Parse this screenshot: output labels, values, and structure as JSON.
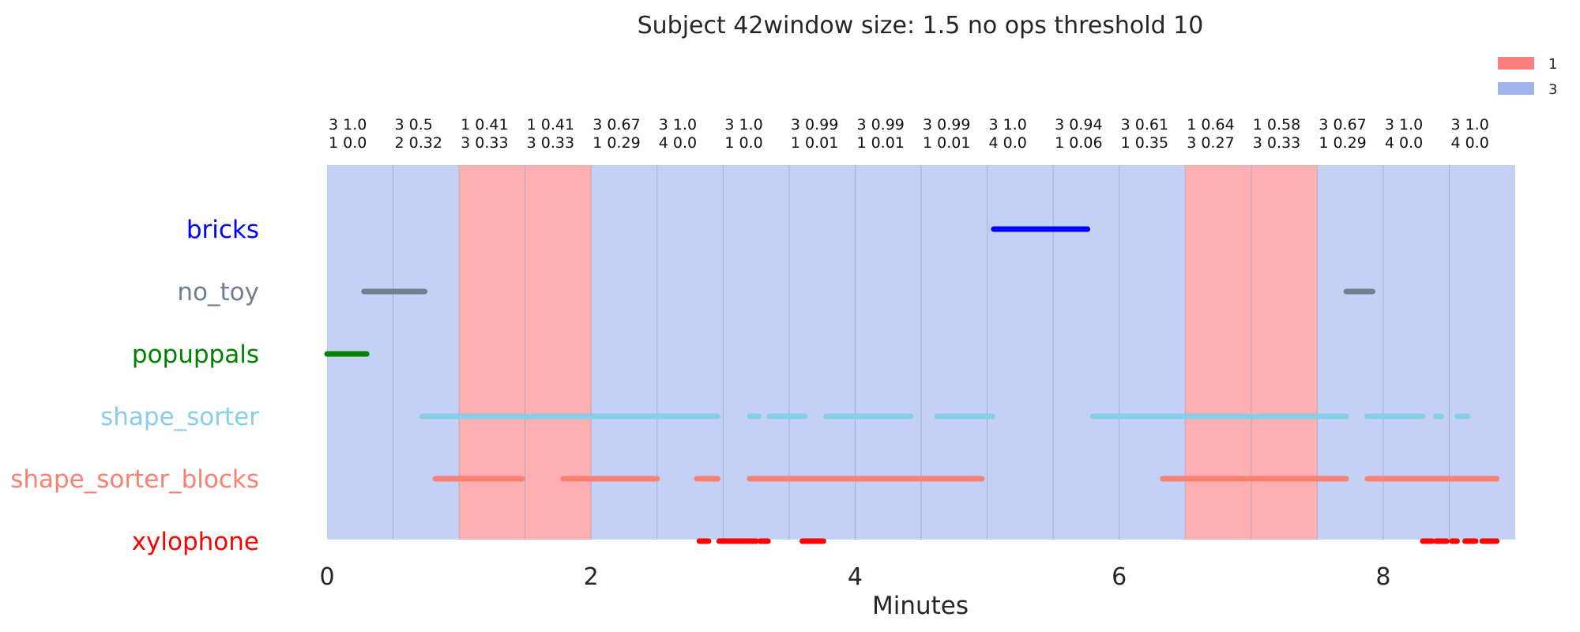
{
  "chart_data": {
    "type": "timeline",
    "title": "Subject 42window size: 1.5 no ops threshold 10",
    "xlabel": "Minutes",
    "xlim": [
      0,
      9
    ],
    "xticks": [
      0,
      2,
      4,
      6,
      8
    ],
    "window_minutes": 0.5,
    "legend": [
      {
        "label": "1",
        "color": "#fa8080"
      },
      {
        "label": "3",
        "color": "#a0b4ec"
      }
    ],
    "state_colors": {
      "1": "#fdb0b2",
      "3": "#c5d1f4"
    },
    "windows": [
      {
        "state": "3",
        "line1": "3 1.0",
        "line2": "1 0.0"
      },
      {
        "state": "3",
        "line1": "3 0.5",
        "line2": "2 0.32"
      },
      {
        "state": "1",
        "line1": "1 0.41",
        "line2": "3 0.33"
      },
      {
        "state": "1",
        "line1": "1 0.41",
        "line2": "3 0.33"
      },
      {
        "state": "3",
        "line1": "3 0.67",
        "line2": "1 0.29"
      },
      {
        "state": "3",
        "line1": "3 1.0",
        "line2": "4 0.0"
      },
      {
        "state": "3",
        "line1": "3 1.0",
        "line2": "1 0.0"
      },
      {
        "state": "3",
        "line1": "3 0.99",
        "line2": "1 0.01"
      },
      {
        "state": "3",
        "line1": "3 0.99",
        "line2": "1 0.01"
      },
      {
        "state": "3",
        "line1": "3 0.99",
        "line2": "1 0.01"
      },
      {
        "state": "3",
        "line1": "3 1.0",
        "line2": "4 0.0"
      },
      {
        "state": "3",
        "line1": "3 0.94",
        "line2": "1 0.06"
      },
      {
        "state": "3",
        "line1": "3 0.61",
        "line2": "1 0.35"
      },
      {
        "state": "1",
        "line1": "1 0.64",
        "line2": "3 0.27"
      },
      {
        "state": "1",
        "line1": "1 0.58",
        "line2": "3 0.33"
      },
      {
        "state": "3",
        "line1": "3 0.67",
        "line2": "1 0.29"
      },
      {
        "state": "3",
        "line1": "3 1.0",
        "line2": "4 0.0"
      },
      {
        "state": "3",
        "line1": "3 1.0",
        "line2": "4 0.0"
      }
    ],
    "toys": [
      {
        "name": "bricks",
        "color": "#0000ff",
        "segments": [
          [
            5.05,
            5.76
          ]
        ]
      },
      {
        "name": "no_toy",
        "color": "#708090",
        "segments": [
          [
            0.28,
            0.74
          ],
          [
            7.72,
            7.92
          ]
        ]
      },
      {
        "name": "popuppals",
        "color": "#008000",
        "segments": [
          [
            0.0,
            0.3
          ]
        ]
      },
      {
        "name": "shape_sorter",
        "color": "#87ceeb",
        "segments": [
          [
            0.72,
            2.96
          ],
          [
            3.2,
            3.27
          ],
          [
            3.35,
            3.62
          ],
          [
            3.78,
            4.42
          ],
          [
            4.62,
            5.04
          ],
          [
            5.8,
            7.72
          ],
          [
            7.88,
            8.3
          ],
          [
            8.4,
            8.44
          ],
          [
            8.56,
            8.64
          ]
        ]
      },
      {
        "name": "shape_sorter_blocks",
        "color": "#fa8072",
        "segments": [
          [
            0.82,
            1.48
          ],
          [
            1.79,
            2.5
          ],
          [
            2.8,
            2.96
          ],
          [
            3.2,
            4.96
          ],
          [
            6.33,
            7.72
          ],
          [
            7.88,
            8.86
          ]
        ]
      },
      {
        "name": "xylophone",
        "color": "#ff0000",
        "segments": [
          [
            2.82,
            2.89
          ],
          [
            2.97,
            3.25
          ],
          [
            3.28,
            3.34
          ],
          [
            3.6,
            3.76
          ],
          [
            8.3,
            8.37
          ],
          [
            8.4,
            8.48
          ],
          [
            8.52,
            8.56
          ],
          [
            8.62,
            8.7
          ],
          [
            8.75,
            8.86
          ]
        ]
      }
    ]
  }
}
